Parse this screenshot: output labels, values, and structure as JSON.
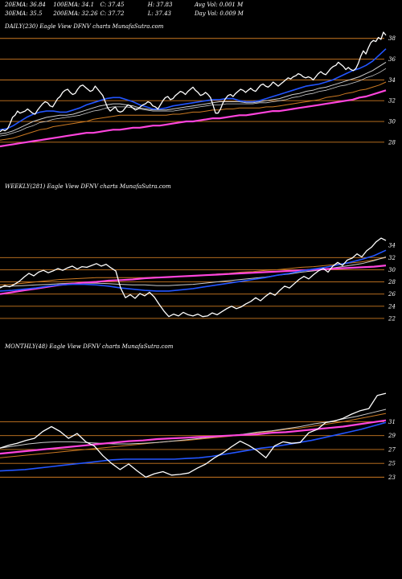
{
  "header": {
    "row1": [
      {
        "id": "ema20",
        "text": "20EMA: 36.84"
      },
      {
        "id": "ema100",
        "text": "100EMA: 34.1"
      },
      {
        "id": "close1",
        "text": "C: 37.45"
      },
      {
        "id": "high",
        "text": "H: 37.83"
      },
      {
        "id": "avgvol",
        "text": "Avg Vol: 0.001 M"
      }
    ],
    "row2": [
      {
        "id": "ema30",
        "text": "30EMA: 35.5"
      },
      {
        "id": "ema200",
        "text": "200EMA: 32.26"
      },
      {
        "id": "close2",
        "text": "C: 37.72"
      },
      {
        "id": "low",
        "text": "L: 37.43"
      },
      {
        "id": "dayvol",
        "text": "Day Vol: 0.009 M"
      }
    ]
  },
  "colors": {
    "background": "#000000",
    "price": "#ffffff",
    "ema_fast": "#2255ff",
    "ema_slow": "#ff44dd",
    "ema_mid1": "#cccccc",
    "ema_mid2": "#cc7a22",
    "hline": "#cc7a22"
  },
  "chart_data": [
    {
      "type": "line",
      "label": "DAILY(230) Eagle  View  DFNV charts MunafaSutra.com",
      "yticks": [
        28,
        30,
        32,
        34,
        36,
        38
      ],
      "ylim": [
        27.6,
        38.6
      ],
      "hlines": [
        28,
        30,
        32,
        34,
        36,
        38
      ],
      "series": [
        {
          "role": "price",
          "values": [
            29.0,
            29.2,
            29.1,
            29.3,
            29.8,
            30.4,
            30.6,
            31.0,
            30.8,
            30.9,
            31.0,
            31.2,
            31.0,
            30.8,
            30.7,
            31.1,
            31.4,
            31.7,
            31.9,
            31.8,
            31.5,
            31.4,
            31.8,
            32.2,
            32.4,
            32.8,
            33.0,
            33.1,
            32.8,
            32.6,
            32.7,
            33.1,
            33.4,
            33.5,
            33.3,
            33.1,
            32.9,
            33.0,
            33.4,
            33.1,
            32.8,
            32.5,
            31.9,
            31.3,
            31.0,
            31.2,
            31.4,
            31.0,
            30.9,
            31.0,
            31.3,
            31.6,
            31.5,
            31.3,
            31.1,
            31.2,
            31.4,
            31.6,
            31.7,
            31.9,
            31.8,
            31.5,
            31.4,
            31.2,
            31.6,
            32.0,
            32.3,
            32.4,
            32.1,
            32.2,
            32.5,
            32.7,
            32.9,
            32.8,
            32.6,
            32.9,
            33.1,
            33.3,
            33.0,
            32.8,
            32.5,
            32.6,
            32.8,
            32.6,
            32.3,
            31.6,
            30.8,
            30.8,
            31.2,
            31.8,
            32.2,
            32.5,
            32.6,
            32.4,
            32.7,
            32.9,
            33.1,
            33.0,
            32.8,
            33.0,
            33.2,
            33.0,
            32.9,
            33.2,
            33.5,
            33.6,
            33.4,
            33.3,
            33.5,
            33.8,
            33.6,
            33.4,
            33.6,
            33.8,
            34.0,
            34.2,
            34.1,
            34.3,
            34.4,
            34.6,
            34.5,
            34.3,
            34.2,
            34.3,
            34.2,
            34.0,
            34.3,
            34.6,
            34.8,
            34.6,
            34.5,
            34.8,
            35.1,
            35.3,
            35.4,
            35.7,
            35.5,
            35.3,
            35.0,
            35.2,
            35.0,
            34.9,
            35.1,
            35.6,
            36.3,
            36.8,
            36.5,
            37.1,
            37.6,
            37.8,
            37.7,
            38.1,
            37.9,
            38.6,
            38.3
          ]
        },
        {
          "role": "ema_fast",
          "values": [
            29.2,
            29.3,
            29.6,
            30.0,
            30.4,
            30.7,
            30.9,
            31.0,
            31.0,
            30.9,
            30.9,
            31.1,
            31.3,
            31.6,
            31.8,
            32.0,
            32.2,
            32.3,
            32.3,
            32.1,
            31.9,
            31.6,
            31.4,
            31.2,
            31.2,
            31.3,
            31.5,
            31.6,
            31.7,
            31.8,
            31.9,
            32.0,
            32.1,
            32.1,
            32.2,
            32.2,
            32.0,
            31.9,
            31.9,
            32.0,
            32.2,
            32.4,
            32.6,
            32.8,
            33.0,
            33.2,
            33.4,
            33.5,
            33.6,
            33.8,
            34.0,
            34.3,
            34.6,
            34.9,
            35.1,
            35.4,
            35.8,
            36.4,
            37.0
          ]
        },
        {
          "role": "ema_mid1",
          "values": [
            28.8,
            28.9,
            29.1,
            29.4,
            29.7,
            30.0,
            30.2,
            30.4,
            30.5,
            30.6,
            30.6,
            30.7,
            30.9,
            31.1,
            31.3,
            31.5,
            31.6,
            31.7,
            31.7,
            31.6,
            31.5,
            31.3,
            31.2,
            31.1,
            31.1,
            31.1,
            31.2,
            31.3,
            31.4,
            31.5,
            31.6,
            31.7,
            31.8,
            31.9,
            31.9,
            31.9,
            31.9,
            31.8,
            31.8,
            31.9,
            32.0,
            32.1,
            32.2,
            32.4,
            32.6,
            32.7,
            32.9,
            33.0,
            33.2,
            33.3,
            33.5,
            33.7,
            33.9,
            34.1,
            34.3,
            34.6,
            34.9,
            35.3,
            35.7
          ]
        },
        {
          "role": "ema_mid1b",
          "values": [
            28.6,
            28.7,
            28.9,
            29.1,
            29.4,
            29.6,
            29.9,
            30.0,
            30.2,
            30.3,
            30.4,
            30.5,
            30.6,
            30.8,
            31.0,
            31.1,
            31.3,
            31.4,
            31.4,
            31.4,
            31.3,
            31.2,
            31.1,
            31.0,
            31.0,
            31.0,
            31.0,
            31.1,
            31.2,
            31.3,
            31.4,
            31.5,
            31.6,
            31.6,
            31.7,
            31.7,
            31.7,
            31.7,
            31.7,
            31.8,
            31.8,
            31.9,
            32.0,
            32.1,
            32.3,
            32.4,
            32.6,
            32.7,
            32.9,
            33.0,
            33.2,
            33.4,
            33.5,
            33.7,
            33.9,
            34.2,
            34.4,
            34.7,
            35.1
          ]
        },
        {
          "role": "ema_mid2",
          "values": [
            28.2,
            28.3,
            28.4,
            28.6,
            28.8,
            29.0,
            29.2,
            29.3,
            29.5,
            29.6,
            29.7,
            29.8,
            29.9,
            30.0,
            30.2,
            30.3,
            30.4,
            30.5,
            30.6,
            30.6,
            30.6,
            30.6,
            30.6,
            30.6,
            30.6,
            30.6,
            30.7,
            30.7,
            30.8,
            30.9,
            30.9,
            31.0,
            31.1,
            31.1,
            31.2,
            31.2,
            31.3,
            31.3,
            31.3,
            31.3,
            31.4,
            31.4,
            31.5,
            31.6,
            31.7,
            31.8,
            31.9,
            32.0,
            32.1,
            32.3,
            32.4,
            32.5,
            32.7,
            32.8,
            33.0,
            33.1,
            33.3,
            33.5,
            33.8
          ]
        },
        {
          "role": "ema_slow",
          "values": [
            27.6,
            27.7,
            27.8,
            27.9,
            28.0,
            28.1,
            28.2,
            28.3,
            28.4,
            28.5,
            28.6,
            28.7,
            28.8,
            28.9,
            28.9,
            29.0,
            29.1,
            29.2,
            29.2,
            29.3,
            29.4,
            29.4,
            29.5,
            29.6,
            29.6,
            29.7,
            29.8,
            29.9,
            30.0,
            30.0,
            30.1,
            30.2,
            30.3,
            30.3,
            30.4,
            30.5,
            30.6,
            30.6,
            30.7,
            30.8,
            30.9,
            31.0,
            31.0,
            31.1,
            31.2,
            31.3,
            31.4,
            31.5,
            31.6,
            31.7,
            31.8,
            31.9,
            32.0,
            32.1,
            32.3,
            32.4,
            32.6,
            32.8,
            33.0
          ]
        }
      ]
    },
    {
      "type": "line",
      "label": "WEEKLY(281) Eagle  View  DFNV charts MunafaSutra.com",
      "yticks": [
        22,
        24,
        26,
        28,
        30,
        32,
        34
      ],
      "ylim": [
        21.2,
        36.0
      ],
      "hlines": [
        22,
        24,
        26,
        28,
        30,
        32
      ],
      "series": [
        {
          "role": "price",
          "values": [
            27.0,
            27.4,
            27.2,
            27.6,
            28.1,
            28.8,
            29.4,
            29.0,
            29.6,
            29.9,
            29.5,
            29.8,
            30.2,
            29.9,
            30.3,
            30.6,
            30.1,
            30.5,
            30.4,
            30.7,
            31.0,
            30.6,
            30.9,
            30.3,
            29.8,
            27.0,
            25.4,
            25.9,
            25.3,
            26.1,
            25.7,
            26.3,
            25.5,
            24.3,
            23.2,
            22.3,
            22.7,
            22.4,
            23.0,
            22.6,
            22.4,
            22.7,
            22.3,
            22.4,
            22.9,
            22.6,
            23.1,
            23.6,
            24.0,
            23.6,
            23.9,
            24.4,
            24.8,
            25.4,
            24.9,
            25.6,
            26.2,
            25.8,
            26.6,
            27.3,
            27.0,
            27.7,
            28.4,
            28.9,
            28.5,
            29.2,
            29.8,
            30.2,
            29.6,
            30.6,
            31.2,
            30.7,
            31.6,
            31.9,
            32.6,
            32.1,
            33.1,
            33.7,
            34.6,
            35.2,
            34.8
          ]
        },
        {
          "role": "ema_fast",
          "values": [
            26.5,
            26.6,
            26.8,
            27.0,
            27.3,
            27.5,
            27.6,
            27.6,
            27.5,
            27.3,
            27.0,
            26.8,
            26.6,
            26.5,
            26.5,
            26.7,
            26.9,
            27.2,
            27.5,
            27.8,
            28.1,
            28.4,
            28.7,
            29.1,
            29.4,
            29.8,
            30.1,
            30.4,
            30.8,
            31.2,
            31.7,
            32.3,
            33.2
          ]
        },
        {
          "role": "ema_mid1",
          "values": [
            27.2,
            27.3,
            27.4,
            27.5,
            27.6,
            27.7,
            27.8,
            27.8,
            27.8,
            27.7,
            27.6,
            27.5,
            27.5,
            27.4,
            27.4,
            27.5,
            27.6,
            27.8,
            28.0,
            28.2,
            28.4,
            28.6,
            28.8,
            29.1,
            29.3,
            29.6,
            29.8,
            30.1,
            30.4,
            30.7,
            31.0,
            31.5,
            32.1
          ]
        },
        {
          "role": "ema_mid2",
          "values": [
            27.5,
            27.6,
            27.8,
            28.0,
            28.2,
            28.4,
            28.5,
            28.6,
            28.7,
            28.7,
            28.7,
            28.7,
            28.7,
            28.8,
            28.8,
            28.9,
            29.0,
            29.1,
            29.3,
            29.4,
            29.6,
            29.7,
            29.9,
            30.0,
            30.2,
            30.4,
            30.5,
            30.7,
            30.9,
            31.1,
            31.3,
            31.6,
            32.0
          ]
        },
        {
          "role": "ema_slow",
          "values": [
            26.0,
            26.3,
            26.6,
            26.9,
            27.2,
            27.5,
            27.7,
            27.9,
            28.0,
            28.2,
            28.3,
            28.4,
            28.6,
            28.7,
            28.8,
            28.9,
            29.0,
            29.1,
            29.2,
            29.3,
            29.4,
            29.5,
            29.6,
            29.7,
            29.8,
            29.9,
            30.0,
            30.1,
            30.2,
            30.3,
            30.4,
            30.5,
            30.7
          ]
        }
      ]
    },
    {
      "type": "line",
      "label": "MONTHLY(48) Eagle  View  DFNV charts MunafaSutra.com",
      "yticks": [
        23,
        25,
        27,
        29,
        31
      ],
      "ylim": [
        22.0,
        35.0
      ],
      "hlines": [
        23,
        25,
        27,
        29,
        31
      ],
      "series": [
        {
          "role": "price",
          "values": [
            27.2,
            27.6,
            27.9,
            28.3,
            28.6,
            29.6,
            30.3,
            29.6,
            28.6,
            29.3,
            28.1,
            27.5,
            26.1,
            25.0,
            24.1,
            24.9,
            23.9,
            23.0,
            23.5,
            23.8,
            23.3,
            23.4,
            23.6,
            24.3,
            24.9,
            25.8,
            26.5,
            27.4,
            28.2,
            27.6,
            26.8,
            25.8,
            27.5,
            28.1,
            27.9,
            28.0,
            29.4,
            29.9,
            30.9,
            31.1,
            31.5,
            32.1,
            32.6,
            32.9,
            34.8,
            35.1
          ]
        },
        {
          "role": "ema_fast",
          "values": [
            23.9,
            24.0,
            24.1,
            24.3,
            24.5,
            24.7,
            24.9,
            25.1,
            25.3,
            25.5,
            25.6,
            25.6,
            25.6,
            25.6,
            25.6,
            25.7,
            25.8,
            26.0,
            26.3,
            26.6,
            26.9,
            27.2,
            27.4,
            27.7,
            28.0,
            28.3,
            28.7,
            29.1,
            29.5,
            29.9,
            30.4,
            30.9
          ]
        },
        {
          "role": "ema_mid1",
          "values": [
            27.2,
            27.5,
            27.8,
            28.0,
            28.1,
            28.1,
            28.0,
            27.9,
            27.8,
            27.8,
            27.9,
            28.0,
            28.2,
            28.4,
            28.6,
            28.8,
            29.0,
            29.2,
            29.5,
            29.7,
            30.0,
            30.3,
            30.7,
            31.0,
            31.4,
            31.8,
            32.3,
            32.8
          ]
        },
        {
          "role": "ema_mid2",
          "values": [
            25.8,
            26.0,
            26.2,
            26.4,
            26.6,
            26.8,
            27.0,
            27.2,
            27.4,
            27.6,
            27.8,
            28.0,
            28.2,
            28.3,
            28.5,
            28.7,
            28.9,
            29.1,
            29.4,
            29.6,
            29.9,
            30.1,
            30.4,
            30.7,
            31.0,
            31.4,
            31.8,
            32.2
          ]
        },
        {
          "role": "ema_slow",
          "values": [
            26.4,
            26.6,
            26.8,
            27.0,
            27.2,
            27.4,
            27.6,
            27.8,
            28.0,
            28.2,
            28.3,
            28.5,
            28.6,
            28.7,
            28.8,
            28.9,
            29.0,
            29.1,
            29.2,
            29.4,
            29.5,
            29.7,
            29.9,
            30.1,
            30.3,
            30.6,
            30.9,
            31.2
          ]
        }
      ]
    }
  ]
}
